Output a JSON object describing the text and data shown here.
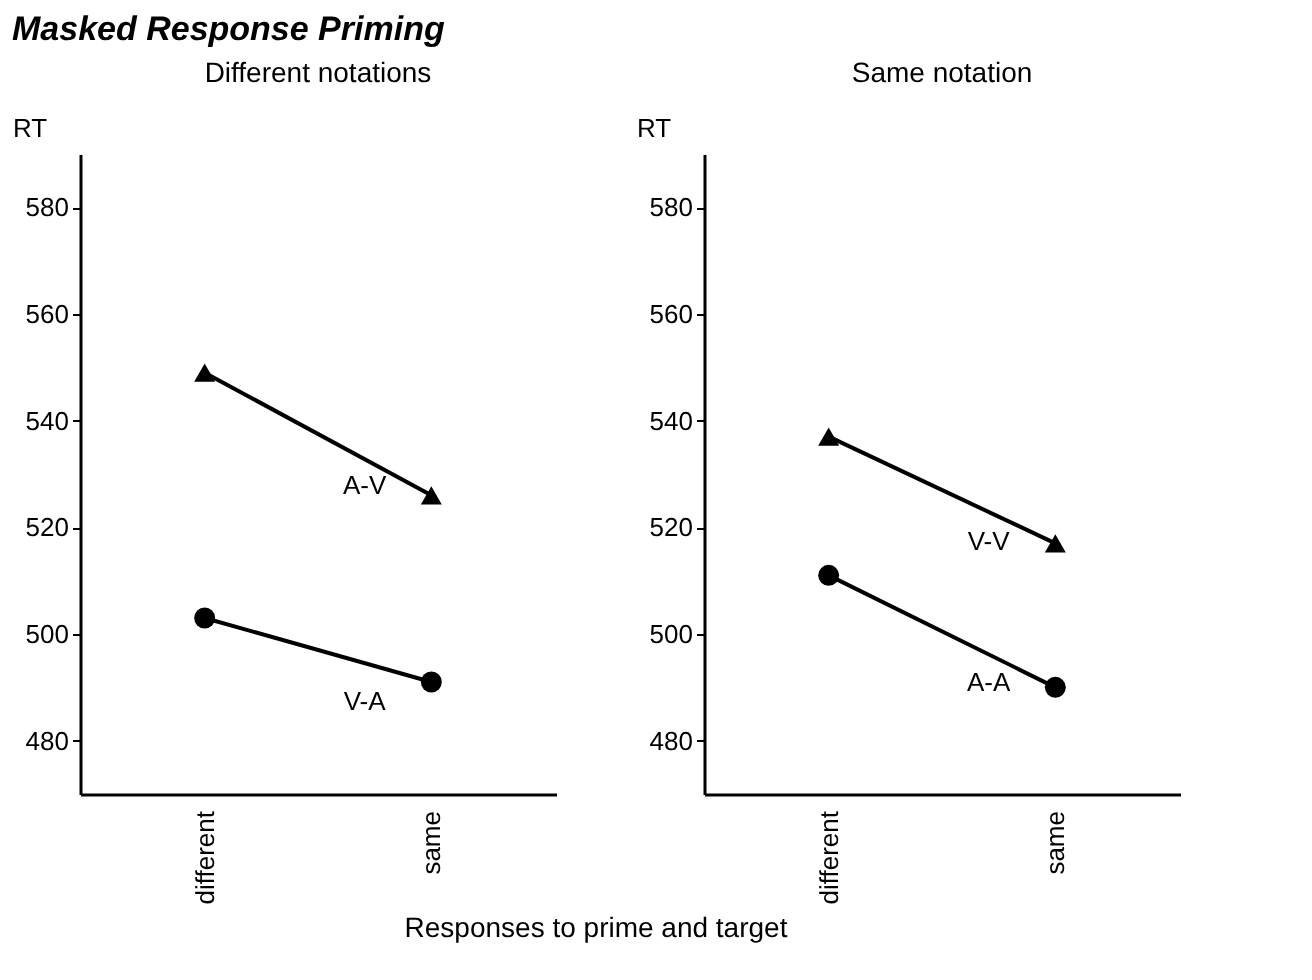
{
  "chart_data": [
    {
      "type": "line",
      "title": "Masked Response Priming",
      "subtitle": "Different notations",
      "xlabel": "Responses to prime and target",
      "ylabel": "RT",
      "categories": [
        "different",
        "same"
      ],
      "ylim": [
        470,
        590
      ],
      "yticks": [
        480,
        500,
        520,
        540,
        560,
        580
      ],
      "grid": false,
      "legend": false,
      "line_style": "solid",
      "series": [
        {
          "name": "A-V",
          "color": "#000000",
          "marker": "triangle",
          "values": [
            549,
            526
          ]
        },
        {
          "name": "V-A",
          "color": "#000000",
          "marker": "circle",
          "values": [
            503,
            491
          ]
        }
      ]
    },
    {
      "type": "line",
      "subtitle": "Same notation",
      "ylabel": "RT",
      "categories": [
        "different",
        "same"
      ],
      "ylim": [
        470,
        590
      ],
      "yticks": [
        480,
        500,
        520,
        540,
        560,
        580
      ],
      "grid": false,
      "legend": false,
      "line_style": "solid",
      "series": [
        {
          "name": "V-V",
          "color": "#000000",
          "marker": "triangle",
          "values": [
            537,
            517
          ]
        },
        {
          "name": "A-A",
          "color": "#000000",
          "marker": "circle",
          "values": [
            511,
            490
          ]
        }
      ]
    }
  ]
}
